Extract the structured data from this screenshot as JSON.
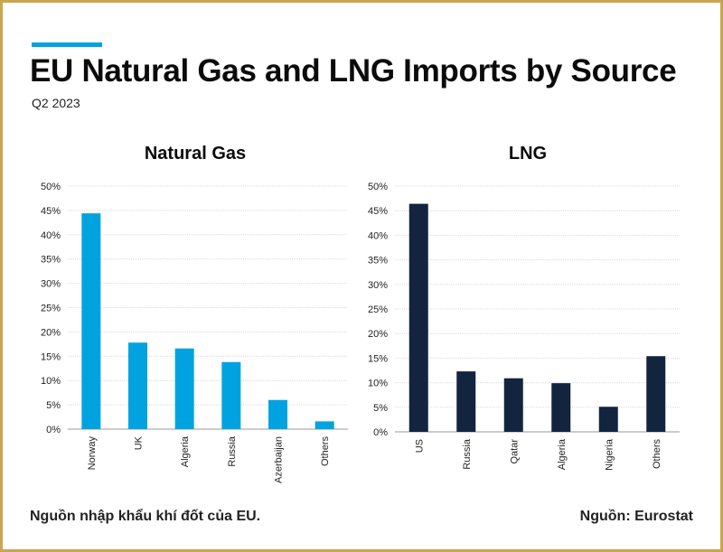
{
  "header": {
    "title": "EU Natural Gas and LNG Imports by Source",
    "subtitle": "Q2 2023"
  },
  "footer": {
    "note": "Nguồn nhập khẩu khí đốt của EU.",
    "source": "Nguồn: Eurostat"
  },
  "colors": {
    "accent": "#00a3e0",
    "natural_gas_bar": "#00a3e0",
    "lng_bar": "#13243f",
    "frame": "#c9a64e"
  },
  "chart_data": [
    {
      "type": "bar",
      "title": "Natural Gas",
      "categories": [
        "Norway",
        "UK",
        "Algeria",
        "Russia",
        "Azerbaijan",
        "Others"
      ],
      "values": [
        44.4,
        17.8,
        16.6,
        13.8,
        6.0,
        1.6
      ],
      "ylim": [
        0,
        50
      ],
      "yticks": [
        "0%",
        "5%",
        "10%",
        "15%",
        "20%",
        "25%",
        "30%",
        "35%",
        "40%",
        "45%",
        "50%"
      ],
      "grid": true
    },
    {
      "type": "bar",
      "title": "LNG",
      "categories": [
        "US",
        "Russia",
        "Qatar",
        "Algeria",
        "Nigeria",
        "Others"
      ],
      "values": [
        46.4,
        12.3,
        10.9,
        9.9,
        5.1,
        15.4
      ],
      "ylim": [
        0,
        50
      ],
      "yticks": [
        "0%",
        "5%",
        "10%",
        "15%",
        "20%",
        "25%",
        "30%",
        "35%",
        "40%",
        "45%",
        "50%"
      ],
      "grid": true
    }
  ]
}
